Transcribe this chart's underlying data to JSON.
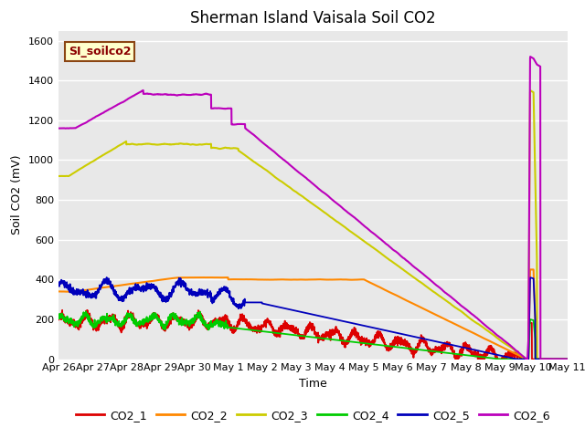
{
  "title": "Sherman Island Vaisala Soil CO2",
  "ylabel": "Soil CO2 (mV)",
  "xlabel": "Time",
  "ylim": [
    0,
    1650
  ],
  "yticks": [
    0,
    200,
    400,
    600,
    800,
    1000,
    1200,
    1400,
    1600
  ],
  "background_color": "#e8e8e8",
  "legend_label": "SI_soilco2",
  "series_colors": {
    "CO2_1": "#dd0000",
    "CO2_2": "#ff8800",
    "CO2_3": "#cccc00",
    "CO2_4": "#00cc00",
    "CO2_5": "#0000bb",
    "CO2_6": "#bb00bb"
  },
  "x_tick_labels": [
    "Apr 26",
    "Apr 27",
    "Apr 28",
    "Apr 29",
    "Apr 30",
    "May 1",
    "May 2",
    "May 3",
    "May 4",
    "May 5",
    "May 6",
    "May 7",
    "May 8",
    "May 9",
    "May 10",
    "May 11"
  ],
  "x_tick_positions": [
    0,
    1,
    2,
    3,
    4,
    5,
    6,
    7,
    8,
    9,
    10,
    11,
    12,
    13,
    14,
    15
  ]
}
